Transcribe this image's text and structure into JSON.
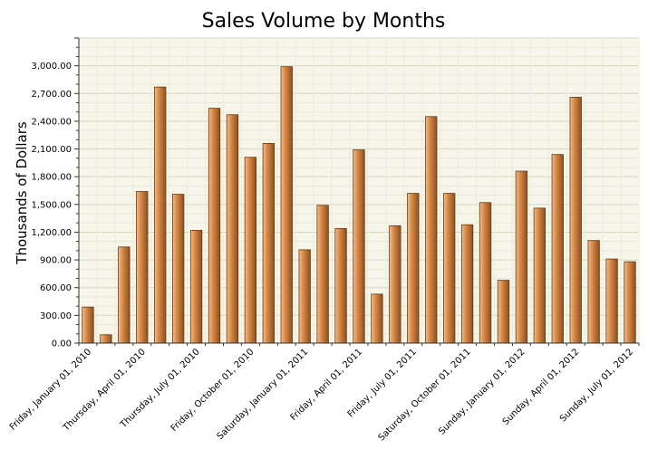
{
  "chart_data": {
    "type": "bar",
    "title": "Sales Volume by Months",
    "xlabel": "",
    "ylabel": "Thousands of Dollars",
    "ylim": [
      0,
      3300
    ],
    "y_ticks": [
      "0.00",
      "300.00",
      "600.00",
      "900.00",
      "1,200.00",
      "1,500.00",
      "1,800.00",
      "2,100.00",
      "2,400.00",
      "2,700.00",
      "3,000.00"
    ],
    "x_tick_labels": [
      "Friday, January 01, 2010",
      "Thursday, April 01, 2010",
      "Thursday, July 01, 2010",
      "Friday, October 01, 2010",
      "Saturday, January 01, 2011",
      "Friday, April 01, 2011",
      "Friday, July 01, 2011",
      "Saturday, October 01, 2011",
      "Sunday, January 01, 2012",
      "Sunday, April 01, 2012",
      "Sunday, July 01, 2012"
    ],
    "categories": [
      "2010-01",
      "2010-02",
      "2010-03",
      "2010-04",
      "2010-05",
      "2010-06",
      "2010-07",
      "2010-08",
      "2010-09",
      "2010-10",
      "2010-11",
      "2010-12",
      "2011-01",
      "2011-02",
      "2011-03",
      "2011-04",
      "2011-05",
      "2011-06",
      "2011-07",
      "2011-08",
      "2011-09",
      "2011-10",
      "2011-11",
      "2011-12",
      "2012-01",
      "2012-02",
      "2012-03",
      "2012-04",
      "2012-05",
      "2012-06",
      "2012-07"
    ],
    "values": [
      390,
      90,
      1040,
      1640,
      2770,
      1610,
      1220,
      2540,
      2470,
      2010,
      2160,
      2990,
      1010,
      1490,
      1240,
      2090,
      530,
      1270,
      1620,
      2450,
      1620,
      1280,
      1520,
      680,
      1860,
      1460,
      2040,
      2660,
      1110,
      910,
      880
    ],
    "grid": true,
    "legend": "none",
    "colors": {
      "bar_light": "#e8a66a",
      "bar_dark": "#8a4a1a",
      "plot_bg": "#f6f6ea",
      "grid": "#dedec8"
    }
  }
}
